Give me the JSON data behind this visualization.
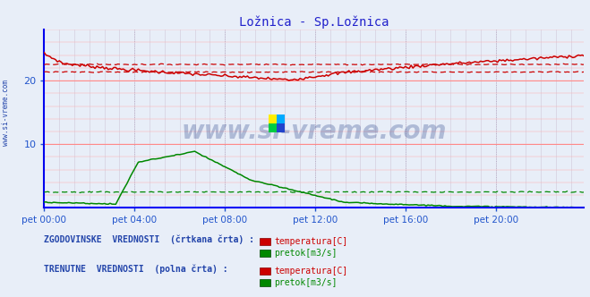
{
  "title": "Ložnica - Sp.Ložnica",
  "title_color": "#2222cc",
  "title_fontsize": 10,
  "bg_color": "#e8eef8",
  "plot_bg_color": "#e8eef8",
  "grid_color_h": "#ffb0b0",
  "grid_color_v": "#c8c8d8",
  "axis_color": "#0000ee",
  "tick_color": "#2255cc",
  "xticklabels": [
    "pet 00:00",
    "pet 04:00",
    "pet 08:00",
    "pet 12:00",
    "pet 16:00",
    "pet 20:00"
  ],
  "xtick_positions": [
    0,
    48,
    96,
    144,
    192,
    240
  ],
  "ylim": [
    0,
    28
  ],
  "yticks": [
    10,
    20
  ],
  "n_points": 288,
  "temp_color": "#cc0000",
  "flow_color": "#008800",
  "blue_line_color": "#0000ff",
  "watermark": "www.si-vreme.com",
  "legend_text1": "ZGODOVINSKE  VREDNOSTI  (črtkana črta) :",
  "legend_text2": "TRENUTNE  VREDNOSTI  (polna črta) :",
  "legend_temp": "temperatura[C]",
  "legend_flow": "pretok[m3/s]",
  "sidebar_text": "www.si-vreme.com",
  "temp_hist_base": 21.4,
  "flow_hist_base": 2.5,
  "temp_peak": 24.2,
  "temp_mid_min": 20.0,
  "temp_end": 23.0,
  "flow_peak": 8.8,
  "flow_peak_idx": 80,
  "flow_end": 0.15
}
